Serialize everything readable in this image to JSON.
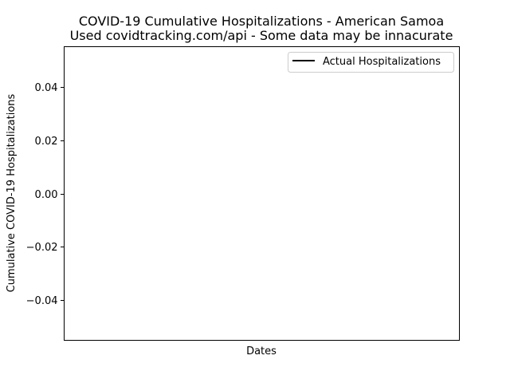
{
  "chart_data": {
    "type": "line",
    "title": "COVID-19 Cumulative Hospitalizations - American Samoa",
    "subtitle": "Used covidtracking.com/api - Some data may be innacurate",
    "xlabel": "Dates",
    "ylabel": "Cumulative COVID-19 Hospitalizations",
    "ylim": [
      -0.055,
      0.055
    ],
    "yticks": [
      0.04,
      0.02,
      0.0,
      -0.02,
      -0.04
    ],
    "ytick_labels": [
      "0.04",
      "0.02",
      "0.00",
      "−0.02",
      "−0.04"
    ],
    "x": [],
    "series": [
      {
        "name": "Actual Hospitalizations",
        "color": "#000000",
        "values": []
      }
    ],
    "grid": false,
    "legend_position": "upper right"
  }
}
